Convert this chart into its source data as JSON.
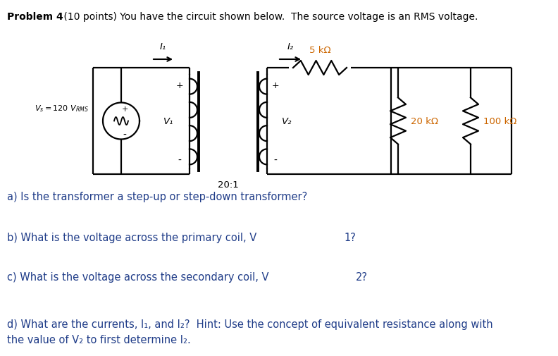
{
  "title_bold": "Problem 4",
  "title_normal": " (10 points) You have the circuit shown below.  The source voltage is an RMS voltage.",
  "I1_label": "I₁",
  "I2_label": "I₂",
  "V1_label": "V₁",
  "V2_label": "V₂",
  "R1_label": "5 kΩ",
  "R2_label": "20 kΩ",
  "R3_label": "100 kΩ",
  "transformer_ratio": "20:1",
  "qa": "a) Is the transformer a step-up or step-down transformer?",
  "qb_parts": [
    "b) What is the voltage across the primary coil, V",
    "1",
    "?"
  ],
  "qc_parts": [
    "c) What is the voltage across the secondary coil, V",
    "2",
    "?"
  ],
  "qd_line1": "d) What are the currents, I₁, and I₂?  Hint: Use the concept of equivalent resistance along with",
  "qd_line2": "the value of V₂ to first determine I₂.",
  "blue_color": "#1f3c88",
  "bg_color": "#ffffff",
  "text_color": "#000000",
  "circuit_orange": "#cc6600"
}
